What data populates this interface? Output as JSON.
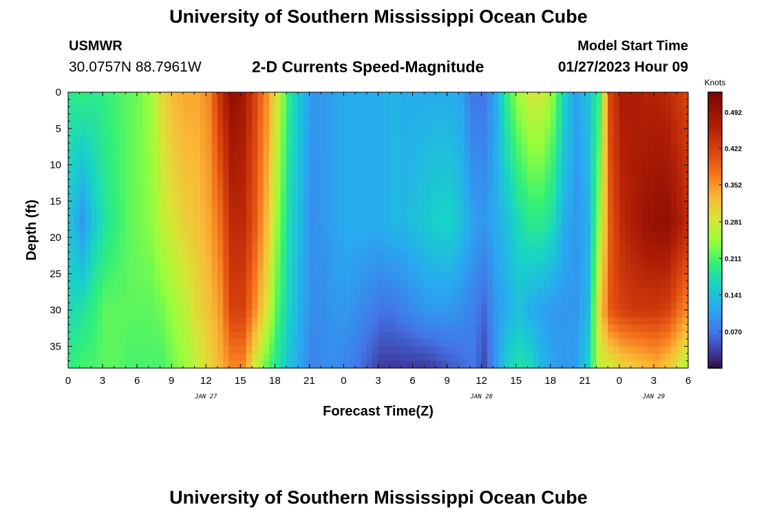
{
  "header": {
    "title": "University of Southern Mississippi Ocean Cube",
    "station_name": "USMWR",
    "station_coords": "30.0757N  88.7961W",
    "subtitle": "2-D Currents Speed-Magnitude",
    "start_label": "Model Start Time",
    "start_value": "01/27/2023 Hour 09"
  },
  "footer": {
    "title": "University of Southern Mississippi Ocean Cube"
  },
  "chart_data": {
    "type": "heatmap",
    "xlabel": "Forecast Time(Z)",
    "ylabel": "Depth (ft)",
    "x_range_hours": [
      0,
      54
    ],
    "y_range_ft": [
      0,
      38
    ],
    "y_reversed": true,
    "x_tick_labels": [
      "0",
      "3",
      "6",
      "9",
      "12",
      "15",
      "18",
      "21",
      "0",
      "3",
      "6",
      "9",
      "12",
      "15",
      "18",
      "21",
      "0",
      "3",
      "6"
    ],
    "y_tick_labels": [
      "0",
      "5",
      "10",
      "15",
      "20",
      "25",
      "30",
      "35"
    ],
    "date_labels": [
      {
        "hour": 12,
        "text": "JAN 27"
      },
      {
        "hour": 36,
        "text": "JAN 28"
      },
      {
        "hour": 51,
        "text": "JAN 29"
      }
    ],
    "colorbar": {
      "title": "Knots",
      "range": [
        0.0,
        0.53
      ],
      "ticks": [
        "0.070",
        "0.141",
        "0.211",
        "0.281",
        "0.352",
        "0.422",
        "0.492"
      ],
      "tick_values": [
        0.07,
        0.141,
        0.211,
        0.281,
        0.352,
        0.422,
        0.492
      ]
    },
    "columns": [
      {
        "hour": 0,
        "top": 0.19,
        "mid": 0.14,
        "deep": 0.17,
        "bottom": 0.2
      },
      {
        "hour": 1,
        "top": 0.2,
        "mid": 0.1,
        "deep": 0.18,
        "bottom": 0.21
      },
      {
        "hour": 2,
        "top": 0.19,
        "mid": 0.15,
        "deep": 0.2,
        "bottom": 0.21
      },
      {
        "hour": 3,
        "top": 0.2,
        "mid": 0.18,
        "deep": 0.22,
        "bottom": 0.22
      },
      {
        "hour": 4,
        "top": 0.21,
        "mid": 0.2,
        "deep": 0.22,
        "bottom": 0.22
      },
      {
        "hour": 5,
        "top": 0.22,
        "mid": 0.22,
        "deep": 0.22,
        "bottom": 0.21
      },
      {
        "hour": 6,
        "top": 0.23,
        "mid": 0.23,
        "deep": 0.22,
        "bottom": 0.21
      },
      {
        "hour": 7,
        "top": 0.25,
        "mid": 0.24,
        "deep": 0.22,
        "bottom": 0.21
      },
      {
        "hour": 8,
        "top": 0.3,
        "mid": 0.27,
        "deep": 0.23,
        "bottom": 0.21
      },
      {
        "hour": 9,
        "top": 0.33,
        "mid": 0.29,
        "deep": 0.25,
        "bottom": 0.23
      },
      {
        "hour": 10,
        "top": 0.34,
        "mid": 0.31,
        "deep": 0.27,
        "bottom": 0.25
      },
      {
        "hour": 11,
        "top": 0.34,
        "mid": 0.32,
        "deep": 0.3,
        "bottom": 0.27
      },
      {
        "hour": 12,
        "top": 0.36,
        "mid": 0.34,
        "deep": 0.32,
        "bottom": 0.3
      },
      {
        "hour": 13,
        "top": 0.44,
        "mid": 0.38,
        "deep": 0.35,
        "bottom": 0.33
      },
      {
        "hour": 14,
        "top": 0.5,
        "mid": 0.45,
        "deep": 0.42,
        "bottom": 0.36
      },
      {
        "hour": 15,
        "top": 0.48,
        "mid": 0.45,
        "deep": 0.42,
        "bottom": 0.36
      },
      {
        "hour": 16,
        "top": 0.42,
        "mid": 0.4,
        "deep": 0.36,
        "bottom": 0.28
      },
      {
        "hour": 17,
        "top": 0.36,
        "mid": 0.33,
        "deep": 0.29,
        "bottom": 0.22
      },
      {
        "hour": 18,
        "top": 0.28,
        "mid": 0.24,
        "deep": 0.21,
        "bottom": 0.18
      },
      {
        "hour": 19,
        "top": 0.19,
        "mid": 0.17,
        "deep": 0.16,
        "bottom": 0.14
      },
      {
        "hour": 20,
        "top": 0.14,
        "mid": 0.13,
        "deep": 0.12,
        "bottom": 0.11
      },
      {
        "hour": 21,
        "top": 0.1,
        "mid": 0.09,
        "deep": 0.09,
        "bottom": 0.08
      },
      {
        "hour": 22,
        "top": 0.1,
        "mid": 0.1,
        "deep": 0.09,
        "bottom": 0.09
      },
      {
        "hour": 23,
        "top": 0.11,
        "mid": 0.11,
        "deep": 0.1,
        "bottom": 0.09
      },
      {
        "hour": 24,
        "top": 0.12,
        "mid": 0.12,
        "deep": 0.1,
        "bottom": 0.08
      },
      {
        "hour": 25,
        "top": 0.12,
        "mid": 0.12,
        "deep": 0.09,
        "bottom": 0.07
      },
      {
        "hour": 26,
        "top": 0.12,
        "mid": 0.12,
        "deep": 0.08,
        "bottom": 0.05
      },
      {
        "hour": 27,
        "top": 0.12,
        "mid": 0.12,
        "deep": 0.07,
        "bottom": 0.03
      },
      {
        "hour": 28,
        "top": 0.13,
        "mid": 0.13,
        "deep": 0.07,
        "bottom": 0.03
      },
      {
        "hour": 29,
        "top": 0.12,
        "mid": 0.13,
        "deep": 0.08,
        "bottom": 0.03
      },
      {
        "hour": 30,
        "top": 0.12,
        "mid": 0.14,
        "deep": 0.09,
        "bottom": 0.03
      },
      {
        "hour": 31,
        "top": 0.12,
        "mid": 0.15,
        "deep": 0.1,
        "bottom": 0.03
      },
      {
        "hour": 32,
        "top": 0.12,
        "mid": 0.16,
        "deep": 0.1,
        "bottom": 0.04
      },
      {
        "hour": 33,
        "top": 0.12,
        "mid": 0.16,
        "deep": 0.1,
        "bottom": 0.05
      },
      {
        "hour": 34,
        "top": 0.11,
        "mid": 0.14,
        "deep": 0.09,
        "bottom": 0.06
      },
      {
        "hour": 35,
        "top": 0.07,
        "mid": 0.11,
        "deep": 0.08,
        "bottom": 0.07
      },
      {
        "hour": 36,
        "top": 0.07,
        "mid": 0.1,
        "deep": 0.06,
        "bottom": 0.04
      },
      {
        "hour": 37,
        "top": 0.12,
        "mid": 0.12,
        "deep": 0.1,
        "bottom": 0.1
      },
      {
        "hour": 38,
        "top": 0.2,
        "mid": 0.14,
        "deep": 0.12,
        "bottom": 0.16
      },
      {
        "hour": 39,
        "top": 0.25,
        "mid": 0.17,
        "deep": 0.14,
        "bottom": 0.18
      },
      {
        "hour": 40,
        "top": 0.28,
        "mid": 0.19,
        "deep": 0.12,
        "bottom": 0.17
      },
      {
        "hour": 41,
        "top": 0.28,
        "mid": 0.19,
        "deep": 0.11,
        "bottom": 0.13
      },
      {
        "hour": 42,
        "top": 0.24,
        "mid": 0.17,
        "deep": 0.1,
        "bottom": 0.11
      },
      {
        "hour": 43,
        "top": 0.16,
        "mid": 0.12,
        "deep": 0.1,
        "bottom": 0.1
      },
      {
        "hour": 44,
        "top": 0.11,
        "mid": 0.1,
        "deep": 0.1,
        "bottom": 0.11
      },
      {
        "hour": 45,
        "top": 0.14,
        "mid": 0.12,
        "deep": 0.13,
        "bottom": 0.16
      },
      {
        "hour": 46,
        "top": 0.2,
        "mid": 0.24,
        "deep": 0.3,
        "bottom": 0.27
      },
      {
        "hour": 47,
        "top": 0.42,
        "mid": 0.4,
        "deep": 0.4,
        "bottom": 0.28
      },
      {
        "hour": 48,
        "top": 0.47,
        "mid": 0.45,
        "deep": 0.42,
        "bottom": 0.3
      },
      {
        "hour": 49,
        "top": 0.47,
        "mid": 0.47,
        "deep": 0.43,
        "bottom": 0.31
      },
      {
        "hour": 50,
        "top": 0.46,
        "mid": 0.49,
        "deep": 0.43,
        "bottom": 0.32
      },
      {
        "hour": 51,
        "top": 0.46,
        "mid": 0.5,
        "deep": 0.43,
        "bottom": 0.33
      },
      {
        "hour": 52,
        "top": 0.45,
        "mid": 0.5,
        "deep": 0.42,
        "bottom": 0.31
      },
      {
        "hour": 53,
        "top": 0.43,
        "mid": 0.47,
        "deep": 0.38,
        "bottom": 0.28
      },
      {
        "hour": 54,
        "top": 0.41,
        "mid": 0.44,
        "deep": 0.35,
        "bottom": 0.24
      }
    ]
  }
}
